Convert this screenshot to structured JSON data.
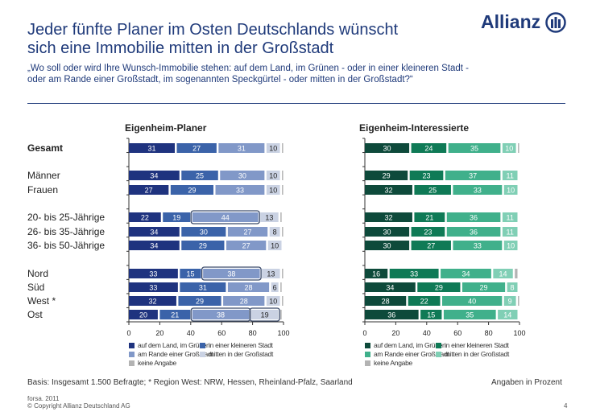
{
  "header": {
    "title_line1": "Jeder fünfte Planer im Osten Deutschlands wünscht",
    "title_line2": "sich eine Immobilie mitten in der Großstadt",
    "subtitle_line1": "„Wo soll oder wird Ihre Wunsch-Immobilie stehen: auf dem Land, im Grünen - oder in einer kleineren Stadt -",
    "subtitle_line2": "oder am Rande einer Großstadt, im sogenannten Speckgürtel - oder mitten in der Großstadt?“",
    "logo": "Allianz"
  },
  "row_labels": [
    "Gesamt",
    "Männer",
    "Frauen",
    "20- bis 25-Jährige",
    "26- bis 35-Jährige",
    "36- bis 50-Jährige",
    "Nord",
    "Süd",
    "West *",
    "Ost"
  ],
  "chart_data": [
    {
      "type": "bar",
      "orientation": "horizontal",
      "stacked": true,
      "title": "Eigenheim-Planer",
      "categories": [
        "Gesamt",
        "Männer",
        "Frauen",
        "20- bis 25-Jährige",
        "26- bis 35-Jährige",
        "36- bis 50-Jährige",
        "Nord",
        "Süd",
        "West *",
        "Ost"
      ],
      "series": [
        {
          "name": "auf dem Land, im Grünen",
          "color": "#1f337f",
          "values": [
            31,
            34,
            27,
            22,
            34,
            34,
            33,
            33,
            32,
            20
          ]
        },
        {
          "name": "in einer kleineren Stadt",
          "color": "#3b63a9",
          "values": [
            27,
            25,
            29,
            19,
            30,
            29,
            15,
            31,
            29,
            21
          ]
        },
        {
          "name": "am Rande einer Großstadt",
          "color": "#8198c8",
          "values": [
            31,
            30,
            33,
            44,
            27,
            27,
            38,
            28,
            28,
            38
          ]
        },
        {
          "name": "mitten in der Großstadt",
          "color": "#cad2e3",
          "values": [
            10,
            10,
            10,
            13,
            8,
            10,
            13,
            6,
            10,
            19
          ]
        },
        {
          "name": "keine Angabe",
          "color": "#b3b3b3",
          "values": [
            1,
            1,
            1,
            2,
            1,
            0,
            1,
            2,
            1,
            2
          ]
        }
      ],
      "highlighted": [
        [
          3,
          2
        ],
        [
          6,
          2
        ],
        [
          9,
          2
        ],
        [
          9,
          3
        ]
      ],
      "xlim": [
        0,
        100
      ],
      "xticks": [
        0,
        20,
        40,
        60,
        80,
        100
      ],
      "legend": "bottom"
    },
    {
      "type": "bar",
      "orientation": "horizontal",
      "stacked": true,
      "title": "Eigenheim-Interessierte",
      "categories": [
        "Gesamt",
        "Männer",
        "Frauen",
        "20- bis 25-Jährige",
        "26- bis 35-Jährige",
        "36- bis 50-Jährige",
        "Nord",
        "Süd",
        "West *",
        "Ost"
      ],
      "series": [
        {
          "name": "auf dem Land, im Grünen",
          "color": "#0e4a3b",
          "values": [
            30,
            29,
            32,
            32,
            30,
            30,
            16,
            34,
            28,
            36
          ]
        },
        {
          "name": "in einer kleineren Stadt",
          "color": "#0f7a56",
          "values": [
            24,
            23,
            25,
            21,
            23,
            27,
            33,
            29,
            22,
            15
          ]
        },
        {
          "name": "am Rande einer Großstadt",
          "color": "#40b08b",
          "values": [
            35,
            37,
            33,
            36,
            36,
            33,
            34,
            29,
            40,
            35
          ]
        },
        {
          "name": "mitten in der Großstadt",
          "color": "#80cfb5",
          "values": [
            10,
            11,
            10,
            11,
            11,
            10,
            14,
            8,
            9,
            14
          ]
        },
        {
          "name": "keine Angabe",
          "color": "#b3b3b3",
          "values": [
            1,
            0,
            0,
            0,
            0,
            0,
            3,
            0,
            1,
            0
          ]
        }
      ],
      "highlighted": [],
      "xlim": [
        0,
        100
      ],
      "xticks": [
        0,
        20,
        40,
        60,
        80,
        100
      ],
      "legend": "bottom"
    }
  ],
  "footer": {
    "basis": "Basis: Insgesamt 1.500 Befragte; * Region West: NRW, Hessen, Rheinland-Pfalz, Saarland",
    "unit_note": "Angaben in Prozent",
    "source": "forsa. 2011",
    "copyright": "© Copyright Allianz Deutschland AG",
    "page_number": "4"
  }
}
